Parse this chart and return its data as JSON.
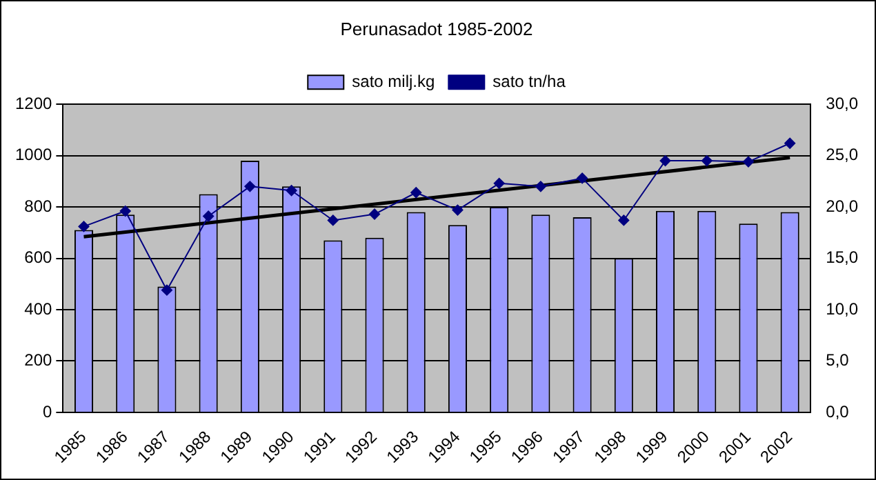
{
  "chart_data": {
    "type": "bar",
    "title": "Perunasadot 1985-2002",
    "categories": [
      "1985",
      "1986",
      "1987",
      "1988",
      "1989",
      "1990",
      "1991",
      "1992",
      "1993",
      "1994",
      "1995",
      "1996",
      "1997",
      "1998",
      "1999",
      "2000",
      "2001",
      "2002"
    ],
    "series": [
      {
        "name": "sato milj.kg",
        "color": "#9999ff",
        "values": [
          710,
          770,
          490,
          850,
          980,
          880,
          670,
          680,
          780,
          730,
          800,
          770,
          760,
          600,
          785,
          785,
          735,
          780
        ]
      },
      {
        "name": "sato tn/ha",
        "type": "line",
        "axis": "y2",
        "color": "#000080",
        "marker": "diamond",
        "values": [
          18.1,
          19.6,
          11.9,
          19.1,
          22.0,
          21.6,
          18.7,
          19.3,
          21.4,
          19.7,
          22.3,
          22.0,
          22.8,
          18.7,
          24.5,
          24.5,
          24.4,
          26.2
        ]
      },
      {
        "type": "line",
        "axis": "y2",
        "color": "#000000",
        "marker": "none",
        "values": [
          17.1,
          null,
          null,
          null,
          null,
          null,
          null,
          null,
          null,
          null,
          null,
          null,
          null,
          null,
          null,
          null,
          null,
          24.8
        ]
      }
    ],
    "ylim": [
      0,
      1200
    ],
    "yticks": [
      0,
      200,
      400,
      600,
      800,
      1000,
      1200
    ],
    "y2lim": [
      0,
      30
    ],
    "y2ticks": [
      {
        "value": 0,
        "label": "0,0"
      },
      {
        "value": 5,
        "label": "5,0"
      },
      {
        "value": 10,
        "label": "10,0"
      },
      {
        "value": 15,
        "label": "15,0"
      },
      {
        "value": 20,
        "label": "20,0"
      },
      {
        "value": 25,
        "label": "25,0"
      },
      {
        "value": 30,
        "label": "30,0"
      }
    ],
    "grid": "y",
    "legend": "top"
  }
}
